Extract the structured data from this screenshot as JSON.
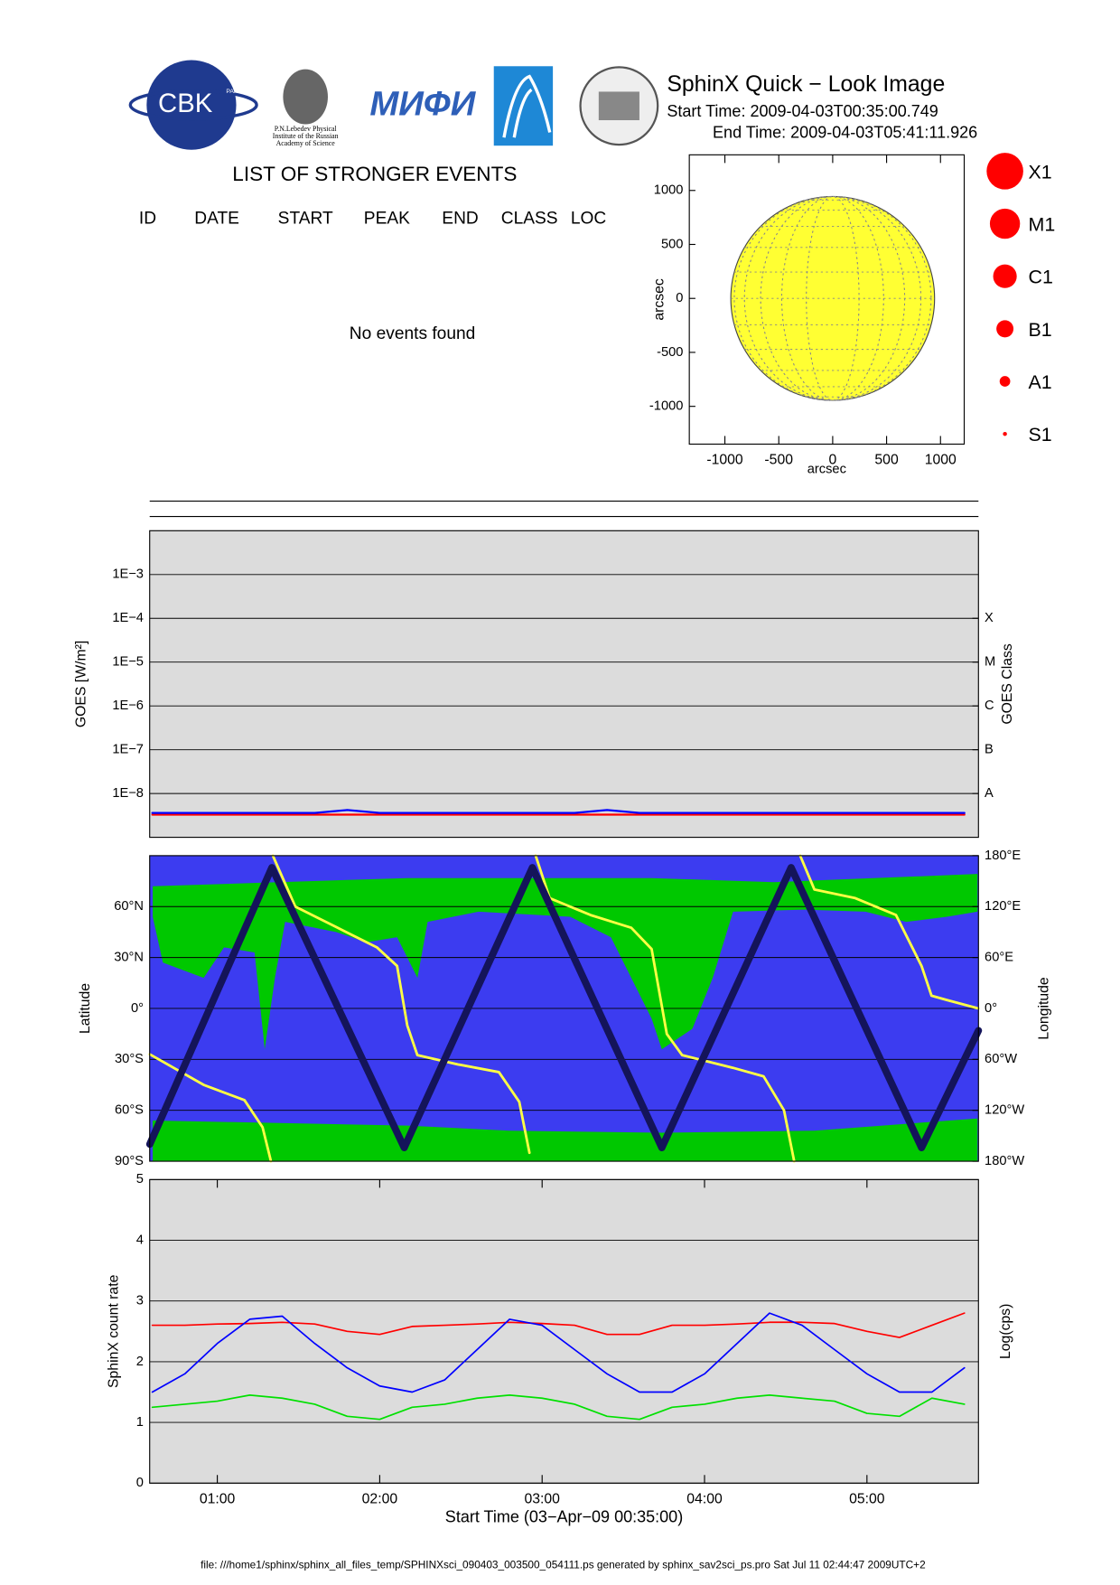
{
  "header": {
    "title": "SphinX Quick − Look Image",
    "start_time": "Start Time: 2009-04-03T00:35:00.749",
    "end_time": "End Time: 2009-04-03T05:41:11.926"
  },
  "logos": {
    "cbk": "CBK",
    "cbk_sub": "PAN",
    "lebedev": [
      "P.N.Lebedev Physical",
      "Institute of the Russian",
      "Academy of Science"
    ],
    "mifi": "МИФИ"
  },
  "events": {
    "title": "LIST OF STRONGER EVENTS",
    "columns": [
      "ID",
      "DATE",
      "START",
      "PEAK",
      "END",
      "CLASS",
      "LOC"
    ],
    "message": "No events found"
  },
  "legend": {
    "items": [
      "X1",
      "M1",
      "C1",
      "B1",
      "A1",
      "S1"
    ],
    "color": "#ff0000"
  },
  "footer": "file: ///home1/sphinx/sphinx_all_files_temp/SPHINXsci_090403_003500_054111.ps generated by sphinx_sav2sci_ps.pro Sat Jul 11 02:44:47 2009UTC+2",
  "chart_data": [
    {
      "type": "disk",
      "xlabel": "arcsec",
      "ylabel": "arcsec",
      "xlim": [
        -1330,
        1220
      ],
      "ylim": [
        -1350,
        1330
      ],
      "xticks": [
        -1000,
        -500,
        0,
        500,
        1000
      ],
      "yticks": [
        -1000,
        -500,
        0,
        500,
        1000
      ],
      "radius": 945,
      "color": "#ffff33",
      "grid": false
    },
    {
      "type": "line",
      "ylabel": "GOES [W/m²]",
      "y2label": "GOES Class",
      "ylog": true,
      "xlim": [
        0.5836,
        5.6867
      ],
      "ylim": [
        1e-09,
        0.01
      ],
      "y2lim": [
        1e-09,
        0.01
      ],
      "yticks": [
        {
          "value": 1e-08,
          "label": "1E−8"
        },
        {
          "value": 1e-07,
          "label": "1E−7"
        },
        {
          "value": 1e-06,
          "label": "1E−6"
        },
        {
          "value": 1e-05,
          "label": "1E−5"
        },
        {
          "value": 0.0001,
          "label": "1E−4"
        },
        {
          "value": 0.001,
          "label": "1E−3"
        }
      ],
      "y2ticks": [
        {
          "value": 1e-08,
          "label": "A"
        },
        {
          "value": 1e-07,
          "label": "B"
        },
        {
          "value": 1e-06,
          "label": "C"
        },
        {
          "value": 1e-05,
          "label": "M"
        },
        {
          "value": 0.0001,
          "label": "X"
        }
      ],
      "grid": true,
      "x": [
        0.6,
        0.8,
        1.0,
        1.2,
        1.4,
        1.6,
        1.8,
        2.0,
        2.2,
        2.4,
        2.6,
        2.8,
        3.0,
        3.2,
        3.4,
        3.6,
        3.8,
        4.0,
        4.2,
        4.4,
        4.6,
        4.8,
        5.0,
        5.2,
        5.4,
        5.6
      ],
      "series": [
        {
          "color": "#ff0000",
          "line_width": 2,
          "values": [
            3.3e-09,
            3.3e-09,
            3.3e-09,
            3.3e-09,
            3.3e-09,
            3.3e-09,
            3.3e-09,
            3.3e-09,
            3.3e-09,
            3.3e-09,
            3.3e-09,
            3.3e-09,
            3.3e-09,
            3.3e-09,
            3.3e-09,
            3.3e-09,
            3.3e-09,
            3.3e-09,
            3.3e-09,
            3.3e-09,
            3.3e-09,
            3.3e-09,
            3.3e-09,
            3.3e-09,
            3.3e-09,
            3.3e-09
          ]
        },
        {
          "color": "#0000ff",
          "line_width": 2,
          "values": [
            3.6e-09,
            3.6e-09,
            3.6e-09,
            3.6e-09,
            3.6e-09,
            3.6e-09,
            4.2e-09,
            3.6e-09,
            3.6e-09,
            3.6e-09,
            3.6e-09,
            3.6e-09,
            3.6e-09,
            3.6e-09,
            4.2e-09,
            3.6e-09,
            3.6e-09,
            3.6e-09,
            3.6e-09,
            3.6e-09,
            3.6e-09,
            3.6e-09,
            3.6e-09,
            3.6e-09,
            3.6e-09,
            3.6e-09
          ]
        }
      ]
    },
    {
      "type": "line",
      "ylabel": "Latitude",
      "y2label": "Longitude",
      "xlim": [
        0.5836,
        5.6867
      ],
      "ylim": [
        -90,
        90
      ],
      "y2lim": [
        -180,
        180
      ],
      "yticks": [
        {
          "value": -90,
          "label": "90°S"
        },
        {
          "value": -60,
          "label": "60°S"
        },
        {
          "value": -30,
          "label": "30°S"
        },
        {
          "value": 0,
          "label": "0°"
        },
        {
          "value": 30,
          "label": "30°N"
        },
        {
          "value": 60,
          "label": "60°N"
        }
      ],
      "y2ticks": [
        {
          "value": -180,
          "label": "180°W"
        },
        {
          "value": -120,
          "label": "120°W"
        },
        {
          "value": -60,
          "label": "60°W"
        },
        {
          "value": 0,
          "label": "0°"
        },
        {
          "value": 60,
          "label": "60°E"
        },
        {
          "value": 120,
          "label": "120°E"
        },
        {
          "value": 180,
          "label": "180°E"
        }
      ],
      "grid": true,
      "series": [
        {
          "color": "#ffff44",
          "axis": "y2",
          "line_width": 2.5,
          "x": [
            0.584,
            0.916,
            1.167,
            1.279,
            1.33,
            1.336,
            1.342,
            1.48,
            1.731,
            1.982,
            2.107,
            2.17,
            2.232,
            2.483,
            2.734,
            2.859,
            2.922,
            2.94,
            2.96,
            3.047,
            3.298,
            3.549,
            3.674,
            3.768,
            3.862,
            4.176,
            4.364,
            4.489,
            4.552,
            4.57,
            4.589,
            4.677,
            4.928,
            5.179,
            5.336,
            5.398,
            5.492,
            5.687
          ],
          "values": [
            -54,
            -90,
            -108,
            -140,
            -180,
            null,
            180,
            120,
            96,
            72,
            50,
            -20,
            -55,
            -66,
            -75,
            -110,
            -170,
            null,
            180,
            130,
            110,
            95,
            70,
            -30,
            -55,
            -70,
            -80,
            -120,
            -180,
            null,
            180,
            140,
            130,
            110,
            50,
            15,
            10,
            0
          ]
        },
        {
          "color": "#14145a",
          "line_width": 7,
          "x": [
            0.584,
            1.336,
            2.151,
            2.94,
            3.737,
            4.533,
            5.336,
            5.687
          ],
          "values": [
            -80,
            83,
            -82,
            83,
            -82,
            83,
            -82,
            -13
          ]
        }
      ]
    },
    {
      "type": "line",
      "ylabel": "SphinX count rate",
      "y2label": "Log(cps)",
      "xlabel": "Start Time (03−Apr−09 00:35:00)",
      "xlim": [
        0.5836,
        5.6867
      ],
      "ylim": [
        0,
        5
      ],
      "xticks": [
        {
          "value": 1,
          "label": "01:00"
        },
        {
          "value": 2,
          "label": "02:00"
        },
        {
          "value": 3,
          "label": "03:00"
        },
        {
          "value": 4,
          "label": "04:00"
        },
        {
          "value": 5,
          "label": "05:00"
        }
      ],
      "yticks": [
        0,
        1,
        2,
        3,
        4,
        5
      ],
      "grid": true,
      "x": [
        0.6,
        0.8,
        1.0,
        1.2,
        1.4,
        1.6,
        1.8,
        2.0,
        2.2,
        2.4,
        2.6,
        2.8,
        3.0,
        3.2,
        3.4,
        3.6,
        3.8,
        4.0,
        4.2,
        4.4,
        4.6,
        4.8,
        5.0,
        5.2,
        5.4,
        5.6
      ],
      "series": [
        {
          "color": "#ff0000",
          "line_width": 1.5,
          "values": [
            2.6,
            2.6,
            2.62,
            2.63,
            2.65,
            2.62,
            2.5,
            2.45,
            2.58,
            2.6,
            2.62,
            2.65,
            2.63,
            2.6,
            2.45,
            2.45,
            2.6,
            2.6,
            2.62,
            2.65,
            2.65,
            2.63,
            2.5,
            2.4,
            2.6,
            2.8
          ]
        },
        {
          "color": "#0000ff",
          "line_width": 1.5,
          "values": [
            1.5,
            1.8,
            2.3,
            2.7,
            2.75,
            2.3,
            1.9,
            1.6,
            1.5,
            1.7,
            2.2,
            2.7,
            2.6,
            2.2,
            1.8,
            1.5,
            1.5,
            1.8,
            2.3,
            2.8,
            2.6,
            2.2,
            1.8,
            1.5,
            1.5,
            1.9
          ]
        },
        {
          "color": "#00e000",
          "line_width": 1.5,
          "values": [
            1.25,
            1.3,
            1.35,
            1.45,
            1.4,
            1.3,
            1.1,
            1.05,
            1.25,
            1.3,
            1.4,
            1.45,
            1.4,
            1.3,
            1.1,
            1.05,
            1.25,
            1.3,
            1.4,
            1.45,
            1.4,
            1.35,
            1.15,
            1.1,
            1.4,
            1.3
          ]
        }
      ]
    }
  ]
}
